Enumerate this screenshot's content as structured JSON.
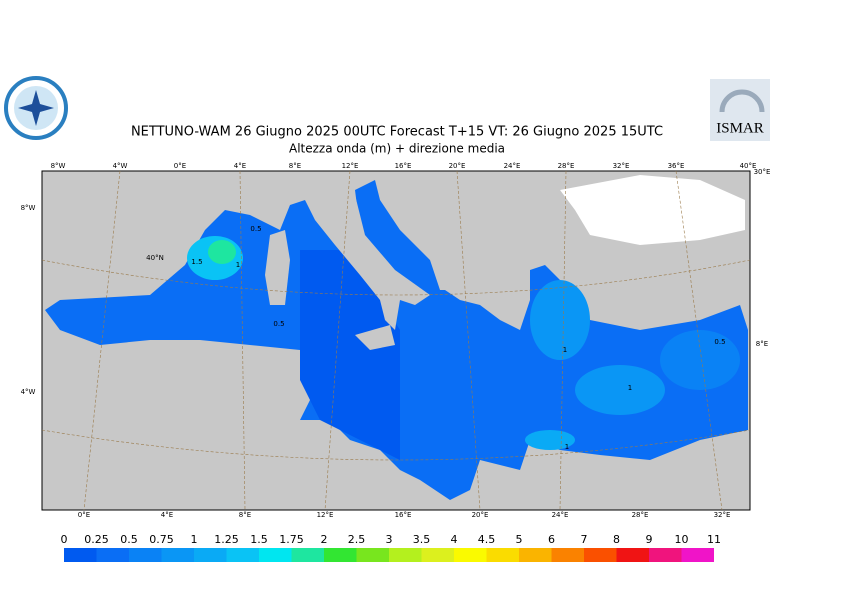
{
  "header": {
    "title": "NETTUNO-WAM 26   Giugno  2025 00UTC Forecast T+15 VT: 26   Giugno  2025 15UTC",
    "subtitle": "Altezza onda (m) + direzione media",
    "logo_text": "ISMAR"
  },
  "graticule": {
    "top": [
      "8°W",
      "4°W",
      "0°E",
      "4°E",
      "8°E",
      "12°E",
      "16°E",
      "20°E",
      "24°E",
      "28°E",
      "32°E",
      "36°E",
      "40°E"
    ],
    "left": [
      "8°W",
      "40°N",
      "4°W"
    ],
    "bottom": [
      "0°E",
      "4°E",
      "8°E",
      "12°E",
      "16°E",
      "20°E",
      "24°E",
      "28°E",
      "32°E"
    ],
    "right": [
      "30°E",
      "8°E"
    ]
  },
  "contour_labels": [
    "1.5",
    "1",
    "0.5",
    "0.5",
    "1",
    "1",
    "0.5",
    "1"
  ],
  "legend": {
    "ticks": [
      0,
      0.25,
      0.5,
      0.75,
      1,
      1.25,
      1.5,
      1.75,
      2,
      2.5,
      3,
      3.5,
      4,
      4.5,
      5,
      6,
      7,
      8,
      9,
      10,
      11
    ],
    "colors": [
      "#005af0",
      "#0a6ef5",
      "#0a82f5",
      "#0a96f5",
      "#0aaaf5",
      "#0ac3f5",
      "#00e6f0",
      "#1ee6a0",
      "#32e632",
      "#78e61e",
      "#b4f01e",
      "#dcf01e",
      "#fafa00",
      "#fadc00",
      "#fab400",
      "#fa8200",
      "#fa5000",
      "#f01414",
      "#f0147d",
      "#f014c8"
    ]
  }
}
